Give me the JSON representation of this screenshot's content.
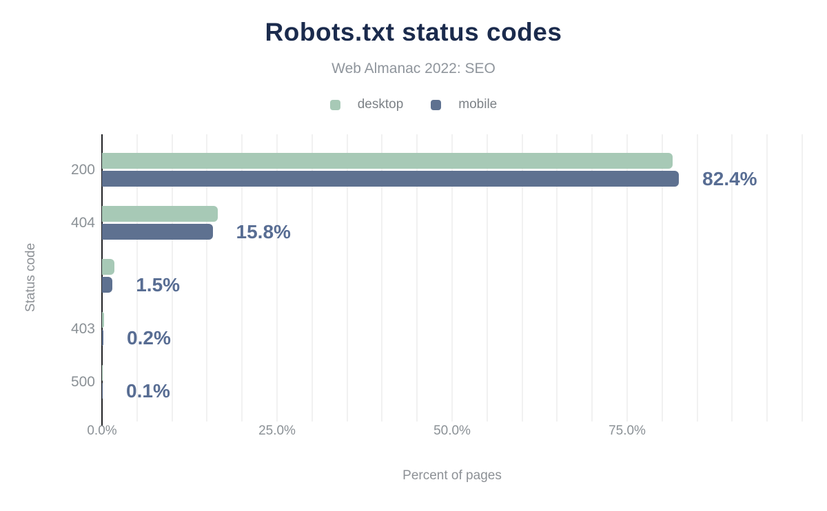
{
  "title": "Robots.txt status codes",
  "subtitle": "Web Almanac 2022: SEO",
  "colors": {
    "title": "#1b2b4d",
    "subtitle": "#8f959c",
    "desktop": "#a7c9b6",
    "mobile": "#5e7190",
    "data_label": "#586d93",
    "axis_text": "#8b9196",
    "gridline": "#f1f1f1",
    "axis_line": "#202124",
    "background": "#ffffff"
  },
  "chart_data": {
    "type": "bar",
    "orientation": "horizontal",
    "title": "Robots.txt status codes",
    "subtitle": "Web Almanac 2022: SEO",
    "categories": [
      "200",
      "404",
      "",
      "403",
      "500"
    ],
    "series": [
      {
        "name": "desktop",
        "color": "#a7c9b6",
        "values": [
          81.5,
          16.5,
          1.8,
          0.3,
          0.1
        ]
      },
      {
        "name": "mobile",
        "color": "#5e7190",
        "values": [
          82.4,
          15.8,
          1.5,
          0.2,
          0.1
        ]
      }
    ],
    "data_labels": [
      "82.4%",
      "15.8%",
      "1.5%",
      "0.2%",
      "0.1%"
    ],
    "data_label_series": "mobile",
    "xlabel": "Percent of pages",
    "ylabel": "Status code",
    "x_ticks": [
      {
        "label": "0.0%",
        "value": 0
      },
      {
        "label": "25.0%",
        "value": 25
      },
      {
        "label": "50.0%",
        "value": 50
      },
      {
        "label": "75.0%",
        "value": 75
      }
    ],
    "xlim": [
      0,
      100
    ],
    "grid": {
      "minor_interval_pct": 5,
      "show": true
    },
    "legend_position": "top"
  }
}
